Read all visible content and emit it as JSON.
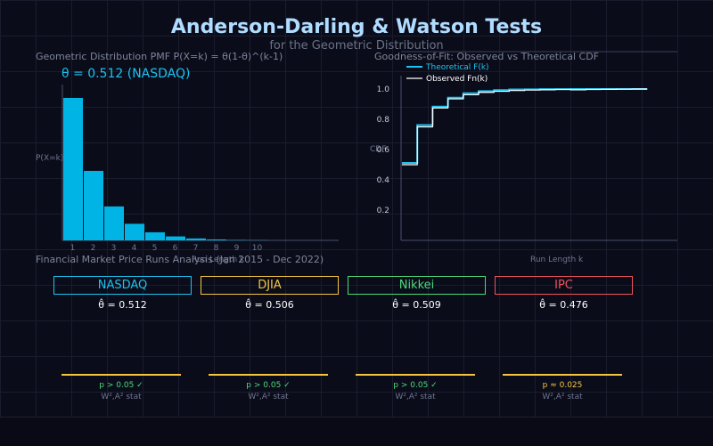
{
  "title": "Anderson-Darling & Watson Tests",
  "subtitle": "for the Geometric Distribution",
  "left_panel": {
    "title": "Geometric Distribution PMF  P(X=k) = θ(1-θ)^(k-1)",
    "theta_label": "θ = 0.512  (NASDAQ)",
    "ylabel": "P(X=k)",
    "xlabel": "Run Length k"
  },
  "right_panel": {
    "title": "Goodness-of-Fit: Observed vs Theoretical CDF",
    "ylabel": "CDF",
    "xlabel": "Run Length k"
  },
  "section_title": "Financial Market Price Runs Analysis (Jan 2015 - Dec 2022)",
  "indices": [
    {
      "name": "NASDAQ",
      "theta": "θ̂ = 0.512",
      "color": "#1cc3f0",
      "p": "p > 0.05 ✓",
      "p_color": "#4cd97b",
      "stat": "W²,A² stat"
    },
    {
      "name": "DJIA",
      "theta": "θ̂ = 0.506",
      "color": "#f5c542",
      "p": "p > 0.05 ✓",
      "p_color": "#4cd97b",
      "stat": "W²,A² stat"
    },
    {
      "name": "Nikkei",
      "theta": "θ̂ = 0.509",
      "color": "#4cd97b",
      "p": "p > 0.05 ✓",
      "p_color": "#4cd97b",
      "stat": "W²,A² stat"
    },
    {
      "name": "IPC",
      "theta": "θ̂ = 0.476",
      "color": "#f0525b",
      "p": "p ≈ 0.025",
      "p_color": "#f5c542",
      "stat": "W²,A² stat"
    }
  ],
  "chart_data": [
    {
      "type": "bar",
      "title": "Geometric Distribution PMF  P(X=k) = θ(1-θ)^(k-1)",
      "xlabel": "Run Length k",
      "ylabel": "P(X=k)",
      "categories": [
        "1",
        "2",
        "3",
        "4",
        "5",
        "6",
        "7",
        "8",
        "9",
        "10"
      ],
      "values": [
        0.512,
        0.2498,
        0.1219,
        0.0595,
        0.029,
        0.0142,
        0.0069,
        0.0034,
        0.0016,
        0.0008
      ],
      "ylim": [
        0,
        0.56
      ],
      "color": "#00b4e6"
    },
    {
      "type": "line",
      "title": "Goodness-of-Fit: Observed vs Theoretical CDF",
      "xlabel": "Run Length k",
      "ylabel": "CDF",
      "yticks": [
        0.2,
        0.4,
        0.6,
        0.8,
        1.0
      ],
      "ylim": [
        0,
        1.1
      ],
      "xlim": [
        0,
        18
      ],
      "step": true,
      "series": [
        {
          "name": "Theoretical F(k)",
          "color": "#1cc3f0",
          "x": [
            1,
            2,
            3,
            4,
            5,
            6,
            7,
            8,
            9,
            10,
            11,
            12,
            13,
            14,
            15,
            16
          ],
          "y": [
            0.512,
            0.762,
            0.884,
            0.943,
            0.972,
            0.986,
            0.993,
            0.997,
            0.998,
            0.999,
            0.9995,
            0.9998,
            0.9999,
            0.9999,
            1.0,
            1.0
          ]
        },
        {
          "name": "Observed Fn(k)",
          "color": "#ffffff",
          "x": [
            1,
            2,
            3,
            4,
            5,
            6,
            7,
            8,
            9,
            10,
            11,
            12,
            13,
            14,
            15,
            16
          ],
          "y": [
            0.5,
            0.75,
            0.875,
            0.935,
            0.962,
            0.978,
            0.985,
            0.99,
            0.993,
            0.995,
            0.997,
            0.995,
            0.997,
            0.998,
            0.999,
            1.0
          ]
        }
      ]
    }
  ]
}
